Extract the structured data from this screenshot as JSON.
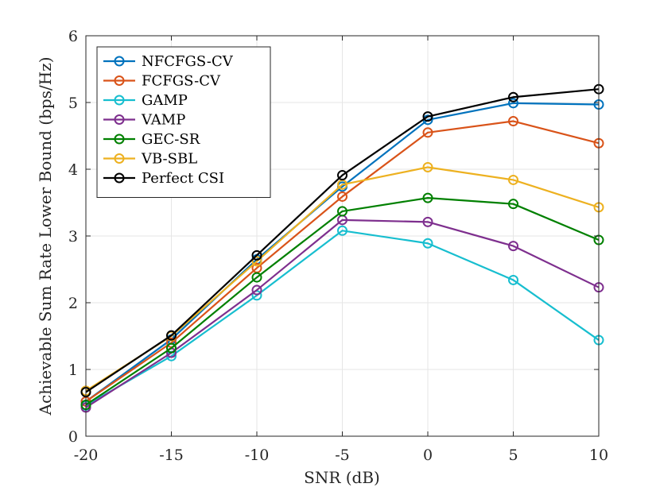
{
  "chart_data": {
    "type": "line",
    "title": "",
    "xlabel": "SNR (dB)",
    "ylabel": "Achievable Sum Rate Lower Bound (bps/Hz)",
    "x": [
      -20,
      -15,
      -10,
      -5,
      0,
      5,
      10
    ],
    "x_tick_labels": [
      "-20",
      "-15",
      "-10",
      "-5",
      "0",
      "5",
      "10"
    ],
    "y_tick_labels": [
      "0",
      "1",
      "2",
      "3",
      "4",
      "5",
      "6"
    ],
    "xlim": [
      -20,
      10
    ],
    "ylim": [
      0,
      6
    ],
    "grid": true,
    "legend_position": "top-left",
    "series": [
      {
        "name": "NFCFGS-CV",
        "color": "#0072BD",
        "values": [
          0.52,
          1.45,
          2.65,
          3.74,
          4.74,
          4.99,
          4.97
        ]
      },
      {
        "name": "FCFGS-CV",
        "color": "#D95319",
        "values": [
          0.52,
          1.4,
          2.52,
          3.59,
          4.55,
          4.72,
          4.39
        ]
      },
      {
        "name": "GAMP",
        "color": "#17BECF",
        "values": [
          0.46,
          1.2,
          2.11,
          3.08,
          2.89,
          2.34,
          1.44
        ]
      },
      {
        "name": "VAMP",
        "color": "#7E2F8E",
        "values": [
          0.43,
          1.25,
          2.19,
          3.24,
          3.21,
          2.85,
          2.23
        ]
      },
      {
        "name": "GEC-SR",
        "color": "#008000",
        "values": [
          0.47,
          1.32,
          2.38,
          3.37,
          3.57,
          3.48,
          2.94
        ]
      },
      {
        "name": "VB-SBL",
        "color": "#EDB120",
        "values": [
          0.68,
          1.5,
          2.62,
          3.77,
          4.03,
          3.84,
          3.43
        ]
      },
      {
        "name": "Perfect CSI",
        "color": "#000000",
        "values": [
          0.66,
          1.51,
          2.71,
          3.91,
          4.79,
          5.08,
          5.2
        ]
      }
    ]
  }
}
